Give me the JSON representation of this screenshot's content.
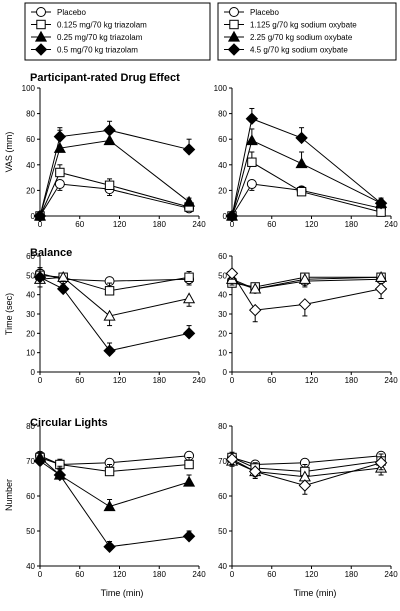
{
  "legends": [
    {
      "items": [
        {
          "label": "Placebo",
          "marker": "circle",
          "fill": "white"
        },
        {
          "label": "0.125 mg/70 kg triazolam",
          "marker": "square",
          "fill": "white"
        },
        {
          "label": "0.25 mg/70 kg triazolam",
          "marker": "triangle",
          "fill": "black"
        },
        {
          "label": "0.5 mg/70 kg triazolam",
          "marker": "diamond",
          "fill": "black"
        }
      ]
    },
    {
      "items": [
        {
          "label": "Placebo",
          "marker": "circle",
          "fill": "white"
        },
        {
          "label": "1.125 g/70 kg sodium oxybate",
          "marker": "square",
          "fill": "white"
        },
        {
          "label": "2.25 g/70 kg sodium oxybate",
          "marker": "triangle",
          "fill": "black"
        },
        {
          "label": "4.5 g/70 kg sodium oxybate",
          "marker": "diamond",
          "fill": "black"
        }
      ]
    }
  ],
  "rows": [
    {
      "title": "Participant-rated Drug Effect",
      "ylabel": "VAS (mm)"
    },
    {
      "title": "Balance",
      "ylabel": "Time (sec)"
    },
    {
      "title": "Circular Lights",
      "ylabel": "Number"
    }
  ],
  "xlabel": "Time (min)",
  "chart_data": [
    {
      "type": "line",
      "row": 0,
      "col": 0,
      "xlim": [
        0,
        240
      ],
      "xticks": [
        0,
        60,
        120,
        180,
        240
      ],
      "ylim": [
        0,
        100
      ],
      "yticks": [
        0,
        20,
        40,
        60,
        80,
        100
      ],
      "series": [
        {
          "marker": "circle",
          "fill": "white",
          "x": [
            0,
            30,
            105,
            225
          ],
          "y": [
            0,
            25,
            21,
            6
          ],
          "err": [
            0,
            5,
            5,
            2
          ]
        },
        {
          "marker": "square",
          "fill": "white",
          "x": [
            0,
            30,
            105,
            225
          ],
          "y": [
            0,
            34,
            24,
            7
          ],
          "err": [
            0,
            6,
            5,
            2
          ]
        },
        {
          "marker": "triangle",
          "fill": "black",
          "x": [
            0,
            30,
            105,
            225
          ],
          "y": [
            0,
            53,
            59,
            11
          ],
          "err": [
            0,
            14,
            8,
            3
          ]
        },
        {
          "marker": "diamond",
          "fill": "black",
          "x": [
            0,
            30,
            105,
            225
          ],
          "y": [
            0,
            62,
            67,
            52
          ],
          "err": [
            0,
            7,
            7,
            8
          ]
        }
      ]
    },
    {
      "type": "line",
      "row": 0,
      "col": 1,
      "xlim": [
        0,
        240
      ],
      "xticks": [
        0,
        60,
        120,
        180,
        240
      ],
      "ylim": [
        0,
        100
      ],
      "yticks": [
        0,
        20,
        40,
        60,
        80,
        100
      ],
      "series": [
        {
          "marker": "circle",
          "fill": "white",
          "x": [
            0,
            30,
            105,
            225
          ],
          "y": [
            0,
            25,
            20,
            6
          ],
          "err": [
            0,
            5,
            4,
            2
          ]
        },
        {
          "marker": "square",
          "fill": "white",
          "x": [
            0,
            30,
            105,
            225
          ],
          "y": [
            0,
            42,
            19,
            3
          ],
          "err": [
            0,
            8,
            4,
            2
          ]
        },
        {
          "marker": "triangle",
          "fill": "black",
          "x": [
            0,
            30,
            105,
            225
          ],
          "y": [
            0,
            59,
            41,
            10
          ],
          "err": [
            0,
            9,
            9,
            3
          ]
        },
        {
          "marker": "diamond",
          "fill": "black",
          "x": [
            0,
            30,
            105,
            225
          ],
          "y": [
            0,
            76,
            61,
            10
          ],
          "err": [
            0,
            8,
            8,
            4
          ]
        }
      ]
    },
    {
      "type": "line",
      "row": 1,
      "col": 0,
      "xlim": [
        0,
        240
      ],
      "xticks": [
        0,
        60,
        120,
        180,
        240
      ],
      "ylim": [
        0,
        60
      ],
      "yticks": [
        0,
        10,
        20,
        30,
        40,
        50,
        60
      ],
      "series": [
        {
          "marker": "circle",
          "fill": "white",
          "x": [
            0,
            35,
            105,
            225
          ],
          "y": [
            51,
            48,
            47,
            48
          ],
          "err": [
            4,
            3,
            5,
            3
          ]
        },
        {
          "marker": "square",
          "fill": "white",
          "x": [
            0,
            35,
            105,
            225
          ],
          "y": [
            50,
            49,
            42,
            49
          ],
          "err": [
            4,
            2,
            4,
            3
          ]
        },
        {
          "marker": "triangle",
          "fill": "white",
          "x": [
            0,
            35,
            105,
            225
          ],
          "y": [
            48,
            49,
            29,
            38
          ],
          "err": [
            4,
            2,
            5,
            4
          ]
        },
        {
          "marker": "diamond",
          "fill": "black",
          "x": [
            0,
            35,
            105,
            225
          ],
          "y": [
            49,
            43,
            11,
            20
          ],
          "err": [
            4,
            4,
            4,
            4
          ]
        }
      ]
    },
    {
      "type": "line",
      "row": 1,
      "col": 1,
      "xlim": [
        0,
        240
      ],
      "xticks": [
        0,
        60,
        120,
        180,
        240
      ],
      "ylim": [
        0,
        60
      ],
      "yticks": [
        0,
        10,
        20,
        30,
        40,
        50,
        60
      ],
      "series": [
        {
          "marker": "circle",
          "fill": "white",
          "x": [
            0,
            35,
            110,
            225
          ],
          "y": [
            47,
            43,
            47,
            48
          ],
          "err": [
            3,
            2,
            3,
            2
          ]
        },
        {
          "marker": "square",
          "fill": "white",
          "x": [
            0,
            35,
            110,
            225
          ],
          "y": [
            46,
            44,
            49,
            49
          ],
          "err": [
            3,
            2,
            2,
            2
          ]
        },
        {
          "marker": "triangle",
          "fill": "white",
          "x": [
            0,
            35,
            110,
            225
          ],
          "y": [
            48,
            43,
            48,
            49
          ],
          "err": [
            3,
            2,
            3,
            2
          ]
        },
        {
          "marker": "diamond",
          "fill": "white",
          "x": [
            0,
            35,
            110,
            225
          ],
          "y": [
            51,
            32,
            35,
            43
          ],
          "err": [
            3,
            6,
            6,
            5
          ]
        }
      ]
    },
    {
      "type": "line",
      "row": 2,
      "col": 0,
      "xlim": [
        0,
        240
      ],
      "xticks": [
        0,
        60,
        120,
        180,
        240
      ],
      "ylim": [
        40,
        80
      ],
      "yticks": [
        40,
        50,
        60,
        70,
        80
      ],
      "series": [
        {
          "marker": "circle",
          "fill": "white",
          "x": [
            0,
            30,
            105,
            225
          ],
          "y": [
            71.5,
            69,
            69.5,
            71.5
          ],
          "err": [
            1.5,
            1.5,
            2,
            2
          ]
        },
        {
          "marker": "square",
          "fill": "white",
          "x": [
            0,
            30,
            105,
            225
          ],
          "y": [
            71,
            69,
            67,
            69
          ],
          "err": [
            1.5,
            1.5,
            2,
            2
          ]
        },
        {
          "marker": "triangle",
          "fill": "black",
          "x": [
            0,
            30,
            105,
            225
          ],
          "y": [
            71,
            66,
            57,
            64
          ],
          "err": [
            1.5,
            2,
            2,
            2
          ]
        },
        {
          "marker": "diamond",
          "fill": "black",
          "x": [
            0,
            30,
            105,
            225
          ],
          "y": [
            70,
            66,
            45.5,
            48.5
          ],
          "err": [
            1.5,
            2.5,
            1.5,
            1.5
          ]
        }
      ]
    },
    {
      "type": "line",
      "row": 2,
      "col": 1,
      "xlim": [
        0,
        240
      ],
      "xticks": [
        0,
        60,
        120,
        180,
        240
      ],
      "ylim": [
        40,
        80
      ],
      "yticks": [
        40,
        50,
        60,
        70,
        80
      ],
      "series": [
        {
          "marker": "circle",
          "fill": "white",
          "x": [
            0,
            35,
            110,
            225
          ],
          "y": [
            71,
            69,
            69.5,
            71.5
          ],
          "err": [
            1.5,
            1.5,
            2,
            2
          ]
        },
        {
          "marker": "square",
          "fill": "white",
          "x": [
            0,
            35,
            110,
            225
          ],
          "y": [
            71,
            68,
            67,
            70
          ],
          "err": [
            1.5,
            1.5,
            2,
            2
          ]
        },
        {
          "marker": "triangle",
          "fill": "white",
          "x": [
            0,
            35,
            110,
            225
          ],
          "y": [
            70,
            67,
            65.5,
            68
          ],
          "err": [
            1.5,
            1.5,
            2,
            2
          ]
        },
        {
          "marker": "diamond",
          "fill": "white",
          "x": [
            0,
            35,
            110,
            225
          ],
          "y": [
            70.5,
            67,
            63,
            69.5
          ],
          "err": [
            1.5,
            2,
            2.5,
            2
          ]
        }
      ]
    }
  ]
}
